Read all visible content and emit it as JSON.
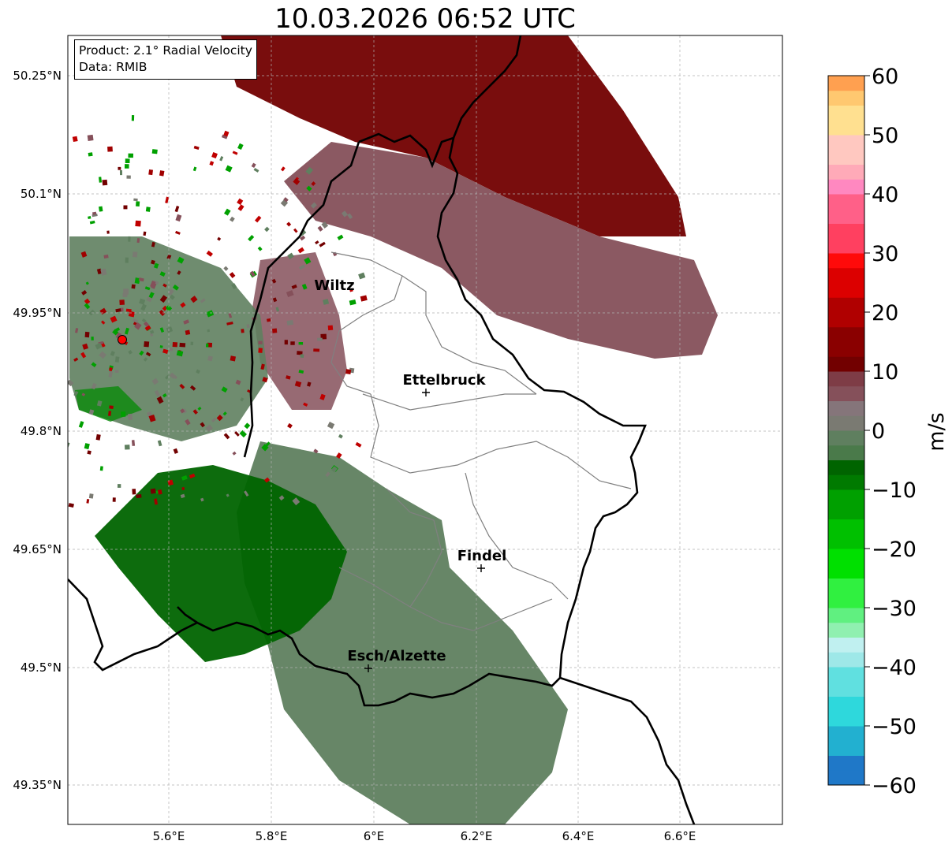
{
  "title": "10.03.2026 06:52 UTC",
  "info": {
    "product": "Product: 2.1° Radial Velocity",
    "data": "Data: RMIB"
  },
  "axes": {
    "y_ticks": [
      "50.25°N",
      "50.1°N",
      "49.95°N",
      "49.8°N",
      "49.65°N",
      "49.5°N",
      "49.35°N"
    ],
    "x_ticks": [
      "5.6°E",
      "5.8°E",
      "6°E",
      "6.2°E",
      "6.4°E",
      "6.6°E"
    ]
  },
  "cities": [
    {
      "name": "Wiltz",
      "lon": 5.93,
      "lat": 49.97
    },
    {
      "name": "Ettelbruck",
      "lon": 6.1,
      "lat": 49.85
    },
    {
      "name": "Findel",
      "lon": 6.21,
      "lat": 49.63
    },
    {
      "name": "Esch/Alzette",
      "lon": 5.99,
      "lat": 49.5
    }
  ],
  "radar_site": {
    "lon": 5.51,
    "lat": 49.915,
    "color": "#ff0000"
  },
  "colorbar": {
    "label": "m/s",
    "ticks": [
      "60",
      "50",
      "40",
      "30",
      "20",
      "10",
      "0",
      "−10",
      "−20",
      "−30",
      "−40",
      "−50",
      "−60"
    ],
    "min": -60,
    "max": 60
  },
  "colors": {
    "approaching_strong": "#006400",
    "approaching_weak": "#5f7f5f",
    "receding_weak": "#85505a",
    "receding_strong": "#720000"
  }
}
